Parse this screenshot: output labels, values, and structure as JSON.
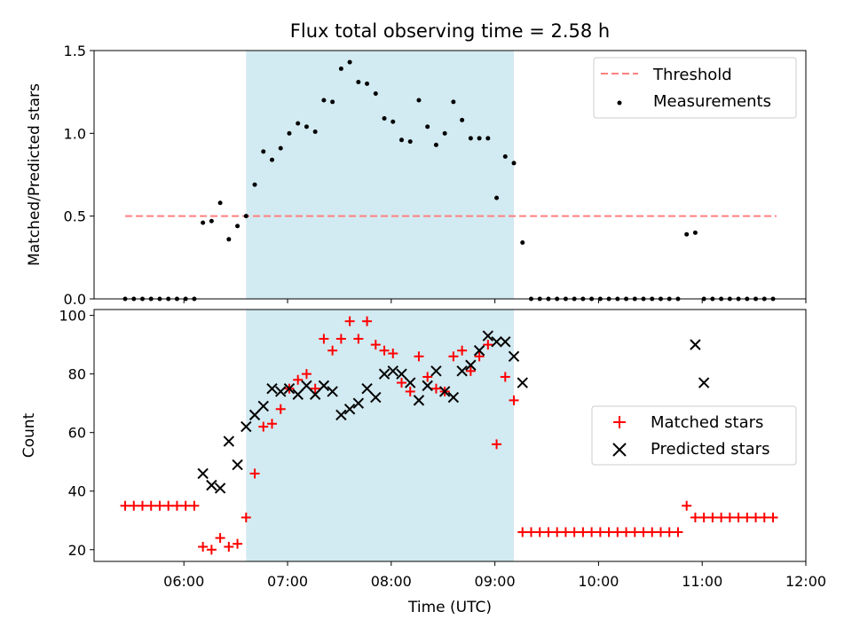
{
  "chart_data": [
    {
      "type": "scatter",
      "title": "Flux total observing time = 2.58 h",
      "ylabel": "Matched/Predicted stars",
      "ylim": [
        0,
        1.5
      ],
      "yticks": [
        "0.0",
        "0.5",
        "1.0",
        "1.5"
      ],
      "xlim": [
        "05:08",
        "12:00"
      ],
      "xticks": [
        "06:00",
        "07:00",
        "08:00",
        "09:00",
        "10:00",
        "11:00",
        "12:00"
      ],
      "shaded_interval": [
        "06:36",
        "09:11"
      ],
      "shade_color": "#add8e6",
      "threshold": {
        "name": "Threshold",
        "value": 0.5,
        "x_range": [
          "05:26",
          "11:43"
        ],
        "color": "#ff7f7f"
      },
      "series": [
        {
          "name": "Measurements",
          "color": "#000000",
          "marker": "dot",
          "x": [
            "05:26",
            "05:31",
            "05:36",
            "05:41",
            "05:46",
            "05:51",
            "05:56",
            "06:01",
            "06:06",
            "06:11",
            "06:16",
            "06:21",
            "06:26",
            "06:31",
            "06:36",
            "06:41",
            "06:46",
            "06:51",
            "06:56",
            "07:01",
            "07:06",
            "07:11",
            "07:16",
            "07:21",
            "07:26",
            "07:31",
            "07:36",
            "07:41",
            "07:46",
            "07:51",
            "07:56",
            "08:01",
            "08:06",
            "08:11",
            "08:16",
            "08:21",
            "08:26",
            "08:31",
            "08:36",
            "08:41",
            "08:46",
            "08:51",
            "08:56",
            "09:01",
            "09:06",
            "09:11",
            "09:16",
            "09:21",
            "09:26",
            "09:31",
            "09:36",
            "09:41",
            "09:46",
            "09:51",
            "09:56",
            "10:01",
            "10:06",
            "10:11",
            "10:16",
            "10:21",
            "10:26",
            "10:31",
            "10:36",
            "10:41",
            "10:46",
            "10:51",
            "10:56",
            "11:01",
            "11:06",
            "11:11",
            "11:16",
            "11:21",
            "11:26",
            "11:31",
            "11:36",
            "11:41"
          ],
          "y": [
            0,
            0,
            0,
            0,
            0,
            0,
            0,
            0,
            0,
            0.46,
            0.47,
            0.58,
            0.36,
            0.44,
            0.5,
            0.69,
            0.89,
            0.84,
            0.91,
            1.0,
            1.06,
            1.04,
            1.01,
            1.2,
            1.19,
            1.39,
            1.43,
            1.31,
            1.3,
            1.24,
            1.09,
            1.07,
            0.96,
            0.95,
            1.2,
            1.04,
            0.93,
            1.0,
            1.19,
            1.08,
            0.97,
            0.97,
            0.97,
            0.61,
            0.86,
            0.82,
            0.34,
            0,
            0,
            0,
            0,
            0,
            0,
            0,
            0,
            0,
            0,
            0,
            0,
            0,
            0,
            0,
            0,
            0,
            0,
            0.39,
            0.4,
            0,
            0,
            0,
            0,
            0,
            0,
            0,
            0,
            0
          ]
        }
      ],
      "legend": "top-right"
    },
    {
      "type": "scatter",
      "xlabel": "Time (UTC)",
      "ylabel": "Count",
      "ylim": [
        16,
        102
      ],
      "yticks": [
        "20",
        "40",
        "60",
        "80",
        "100"
      ],
      "xlim": [
        "05:08",
        "12:00"
      ],
      "xticks": [
        "06:00",
        "07:00",
        "08:00",
        "09:00",
        "10:00",
        "11:00",
        "12:00"
      ],
      "shaded_interval": [
        "06:36",
        "09:11"
      ],
      "shade_color": "#add8e6",
      "series": [
        {
          "name": "Matched stars",
          "color": "#ff0000",
          "marker": "plus",
          "x": [
            "05:26",
            "05:31",
            "05:36",
            "05:41",
            "05:46",
            "05:51",
            "05:56",
            "06:01",
            "06:06",
            "06:11",
            "06:16",
            "06:21",
            "06:26",
            "06:31",
            "06:36",
            "06:41",
            "06:46",
            "06:51",
            "06:56",
            "07:01",
            "07:06",
            "07:11",
            "07:16",
            "07:21",
            "07:26",
            "07:31",
            "07:36",
            "07:41",
            "07:46",
            "07:51",
            "07:56",
            "08:01",
            "08:06",
            "08:11",
            "08:16",
            "08:21",
            "08:26",
            "08:31",
            "08:36",
            "08:41",
            "08:46",
            "08:51",
            "08:56",
            "09:01",
            "09:06",
            "09:11",
            "09:16",
            "09:21",
            "09:26",
            "09:31",
            "09:36",
            "09:41",
            "09:46",
            "09:51",
            "09:56",
            "10:01",
            "10:06",
            "10:11",
            "10:16",
            "10:21",
            "10:26",
            "10:31",
            "10:36",
            "10:41",
            "10:46",
            "10:51",
            "10:56",
            "11:01",
            "11:06",
            "11:11",
            "11:16",
            "11:21",
            "11:26",
            "11:31",
            "11:36",
            "11:41"
          ],
          "y": [
            35,
            35,
            35,
            35,
            35,
            35,
            35,
            35,
            35,
            21,
            20,
            24,
            21,
            22,
            31,
            46,
            62,
            63,
            68,
            75,
            78,
            80,
            75,
            92,
            88,
            92,
            98,
            92,
            98,
            90,
            88,
            87,
            77,
            74,
            86,
            79,
            75,
            74,
            86,
            88,
            81,
            86,
            90,
            56,
            79,
            71,
            26,
            26,
            26,
            26,
            26,
            26,
            26,
            26,
            26,
            26,
            26,
            26,
            26,
            26,
            26,
            26,
            26,
            26,
            26,
            35,
            31,
            31,
            31,
            31,
            31,
            31,
            31,
            31,
            31,
            31
          ]
        },
        {
          "name": "Predicted stars",
          "color": "#000000",
          "marker": "x",
          "x": [
            "06:11",
            "06:16",
            "06:21",
            "06:26",
            "06:31",
            "06:36",
            "06:41",
            "06:46",
            "06:51",
            "06:56",
            "07:01",
            "07:06",
            "07:11",
            "07:16",
            "07:21",
            "07:26",
            "07:31",
            "07:36",
            "07:41",
            "07:46",
            "07:51",
            "07:56",
            "08:01",
            "08:06",
            "08:11",
            "08:16",
            "08:21",
            "08:26",
            "08:31",
            "08:36",
            "08:41",
            "08:46",
            "08:51",
            "08:56",
            "09:01",
            "09:06",
            "09:11",
            "09:16",
            "10:56",
            "11:01"
          ],
          "y": [
            46,
            42,
            41,
            57,
            49,
            62,
            66,
            69,
            75,
            74,
            75,
            73,
            76,
            73,
            76,
            74,
            66,
            68,
            70,
            75,
            72,
            80,
            81,
            80,
            77,
            71,
            76,
            81,
            74,
            72,
            81,
            83,
            88,
            93,
            91,
            91,
            86,
            77,
            90,
            77
          ]
        }
      ],
      "legend": "center-right"
    }
  ]
}
